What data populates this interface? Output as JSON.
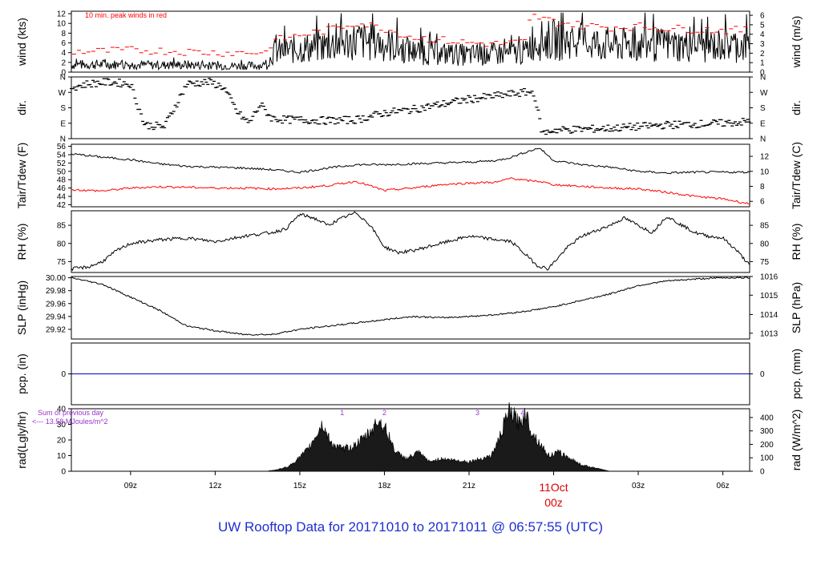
{
  "footer": {
    "title": "UW Rooftop Data for 20171010  to  20171011 @ 06:57:55  (UTC)"
  },
  "time_axis": {
    "tick_labels": [
      {
        "label": "09z",
        "t": 9
      },
      {
        "label": "12z",
        "t": 12
      },
      {
        "label": "15z",
        "t": 15
      },
      {
        "label": "18z",
        "t": 18
      },
      {
        "label": "21z",
        "t": 21
      },
      {
        "label": "03z",
        "t": 27
      },
      {
        "label": "06z",
        "t": 30
      }
    ],
    "date_marker": {
      "t": 24,
      "line1": "11Oct",
      "line2": "00z",
      "color": "#dd0000"
    },
    "range_hours": [
      6.9,
      30.95
    ]
  },
  "colors": {
    "line": "#000000",
    "red": "#ff0000",
    "blue": "#0000cc",
    "purple": "#9933cc"
  },
  "chart_data": [
    {
      "id": "wind",
      "type": "line",
      "ylabel_left": "wind (kts)",
      "ylabel_right": "wind (m/s)",
      "ylim": [
        0,
        12.5
      ],
      "left_ticks": [
        0,
        2,
        4,
        6,
        8,
        10,
        12
      ],
      "right_ticks": [
        {
          "label": "0",
          "value": 0
        },
        {
          "label": "1",
          "value": 1.944
        },
        {
          "label": "2",
          "value": 3.888
        },
        {
          "label": "3",
          "value": 5.832
        },
        {
          "label": "4",
          "value": 7.776
        },
        {
          "label": "5",
          "value": 9.72
        },
        {
          "label": "6",
          "value": 11.664
        }
      ],
      "annotation": {
        "text": "10 min. peak winds in red"
      },
      "series": [
        {
          "name": "",
          "style": "noisy-line",
          "x": [
            6.9,
            8.0,
            9.0,
            10.0,
            11.0,
            12.0,
            13.0,
            13.9,
            14.0,
            15.0,
            16.0,
            17.0,
            18.0,
            19.0,
            20.0,
            21.0,
            22.0,
            23.0,
            23.2,
            24.0,
            25.0,
            26.0,
            27.0,
            28.0,
            29.0,
            30.0,
            30.95
          ],
          "y": [
            1.5,
            1.6,
            1.5,
            1.4,
            1.5,
            1.3,
            1.3,
            1.4,
            4.0,
            4.8,
            5.5,
            6.5,
            5.8,
            4.2,
            3.8,
            3.5,
            3.7,
            4.0,
            6.3,
            6.6,
            6.2,
            5.6,
            5.5,
            5.6,
            5.3,
            5.5,
            5.5
          ]
        },
        {
          "name": "",
          "style": "dashes",
          "x": [
            6.9,
            8.0,
            9.0,
            10.0,
            11.0,
            12.0,
            13.0,
            13.9,
            14.0,
            15.0,
            16.0,
            17.0,
            18.0,
            19.0,
            20.0,
            21.0,
            22.0,
            23.0,
            23.2,
            24.0,
            25.0,
            26.0,
            27.0,
            28.0,
            29.0,
            30.0,
            30.95
          ],
          "y": [
            4.2,
            4.3,
            4.5,
            4.4,
            4.2,
            4.0,
            4.0,
            4.1,
            6.3,
            7.6,
            8.6,
            10.2,
            9.0,
            7.2,
            6.6,
            6.0,
            5.8,
            6.2,
            11.6,
            10.4,
            9.6,
            9.2,
            9.4,
            9.0,
            8.8,
            8.6,
            8.6
          ]
        }
      ]
    },
    {
      "id": "dir",
      "type": "scatter",
      "ylabel_left": "dir.",
      "ylabel_right": "dir.",
      "ylim": [
        0,
        360
      ],
      "ticks": [
        {
          "label": "N",
          "value": 0
        },
        {
          "label": "E",
          "value": 90
        },
        {
          "label": "S",
          "value": 180
        },
        {
          "label": "W",
          "value": 270
        },
        {
          "label": "N",
          "value": 360
        }
      ],
      "series": [
        {
          "name": "",
          "style": "dashes",
          "x": [
            6.9,
            7.5,
            8.2,
            9.0,
            9.5,
            10.2,
            11.0,
            11.8,
            12.3,
            12.8,
            13.2,
            13.6,
            14.0,
            14.5,
            15.0,
            16.0,
            17.0,
            18.0,
            19.0,
            20.0,
            21.0,
            22.0,
            23.0,
            23.3,
            23.6,
            24.0,
            25.0,
            26.0,
            27.0,
            28.0,
            29.0,
            30.0,
            30.95
          ],
          "y": [
            300,
            320,
            330,
            320,
            80,
            70,
            320,
            330,
            300,
            150,
            90,
            200,
            120,
            110,
            110,
            105,
            110,
            150,
            170,
            200,
            230,
            250,
            270,
            270,
            30,
            50,
            55,
            60,
            70,
            80,
            85,
            90,
            100
          ]
        }
      ]
    },
    {
      "id": "temp",
      "type": "line",
      "ylabel_left": "Tair/Tdew (F)",
      "ylabel_right": "Tair/Tdew (C)",
      "ylim": [
        41.5,
        56.5
      ],
      "left_ticks": [
        42,
        44,
        46,
        48,
        50,
        52,
        54,
        56
      ],
      "right_ticks": [
        {
          "label": "6",
          "value": 42.8
        },
        {
          "label": "8",
          "value": 46.4
        },
        {
          "label": "10",
          "value": 50.0
        },
        {
          "label": "12",
          "value": 53.6
        }
      ],
      "series": [
        {
          "name": "",
          "color": "#000000",
          "x": [
            6.9,
            8.0,
            9.0,
            10.0,
            11.0,
            12.0,
            13.0,
            14.0,
            15.0,
            16.0,
            17.0,
            18.0,
            19.0,
            20.0,
            21.0,
            22.0,
            22.5,
            23.0,
            23.5,
            24.0,
            25.0,
            26.0,
            27.0,
            28.0,
            29.0,
            30.0,
            30.95
          ],
          "y": [
            54.2,
            53.4,
            52.8,
            51.8,
            51.2,
            51.0,
            50.8,
            50.4,
            49.8,
            50.8,
            51.6,
            51.6,
            51.8,
            52.0,
            52.2,
            52.6,
            53.4,
            54.6,
            55.6,
            52.6,
            51.6,
            51.0,
            50.0,
            49.6,
            49.8,
            49.8,
            49.8
          ]
        },
        {
          "name": "",
          "color": "#ff0000",
          "x": [
            6.9,
            8.0,
            9.0,
            10.0,
            11.0,
            12.0,
            13.0,
            14.0,
            15.0,
            16.0,
            17.0,
            18.0,
            19.0,
            20.0,
            21.0,
            22.0,
            22.5,
            23.0,
            23.5,
            24.0,
            25.0,
            26.0,
            27.0,
            28.0,
            29.0,
            30.0,
            30.95
          ],
          "y": [
            45.6,
            45.3,
            46.0,
            46.3,
            46.2,
            46.0,
            46.0,
            45.8,
            46.0,
            46.6,
            47.6,
            45.4,
            46.0,
            46.8,
            47.2,
            47.4,
            48.4,
            47.8,
            47.6,
            46.8,
            46.4,
            46.0,
            45.8,
            45.0,
            44.0,
            43.4,
            42.2
          ]
        }
      ]
    },
    {
      "id": "rh",
      "type": "line",
      "ylabel_left": "RH (%)",
      "ylabel_right": "RH (%)",
      "ylim": [
        72,
        89
      ],
      "ticks": [
        75,
        80,
        85
      ],
      "series": [
        {
          "name": "",
          "color": "#000000",
          "x": [
            6.9,
            7.5,
            8.0,
            8.5,
            9.0,
            10.0,
            11.0,
            12.0,
            13.0,
            14.0,
            14.5,
            15.0,
            15.5,
            16.0,
            16.5,
            17.0,
            17.5,
            18.0,
            18.5,
            19.0,
            20.0,
            21.0,
            22.0,
            22.5,
            23.0,
            23.4,
            23.8,
            24.5,
            25.0,
            26.0,
            26.5,
            27.0,
            27.5,
            28.0,
            29.0,
            29.5,
            30.0,
            30.5,
            30.95
          ],
          "y": [
            73.0,
            73.5,
            75.0,
            78.0,
            80.0,
            81.0,
            81.5,
            80.5,
            82.0,
            83.0,
            84.0,
            88.0,
            87.0,
            85.0,
            87.0,
            88.5,
            85.0,
            79.0,
            77.5,
            78.0,
            80.0,
            82.0,
            81.0,
            80.5,
            77.0,
            74.0,
            73.0,
            79.0,
            82.0,
            85.0,
            87.0,
            85.0,
            83.0,
            87.5,
            83.0,
            82.0,
            81.5,
            78.0,
            74.0
          ]
        }
      ]
    },
    {
      "id": "slp",
      "type": "line",
      "ylabel_left": "SLP (inHg)",
      "ylabel_right": "SLP (hPa)",
      "ylim": [
        29.905,
        30.002
      ],
      "left_ticks": [
        {
          "label": "29.92",
          "value": 29.92
        },
        {
          "label": "29.94",
          "value": 29.94
        },
        {
          "label": "29.96",
          "value": 29.96
        },
        {
          "label": "29.98",
          "value": 29.98
        },
        {
          "label": "30.00",
          "value": 30.0
        }
      ],
      "right_ticks": [
        {
          "label": "1013",
          "value": 29.914
        },
        {
          "label": "1014",
          "value": 29.943
        },
        {
          "label": "1015",
          "value": 29.973
        },
        {
          "label": "1016",
          "value": 30.002
        }
      ],
      "series": [
        {
          "name": "",
          "color": "#000000",
          "x": [
            6.9,
            8.0,
            9.0,
            10.0,
            11.0,
            12.0,
            13.0,
            14.0,
            15.0,
            16.0,
            17.0,
            18.0,
            19.0,
            20.0,
            21.0,
            22.0,
            23.0,
            24.0,
            25.0,
            26.0,
            27.0,
            28.0,
            29.0,
            30.0,
            30.95
          ],
          "y": [
            30.0,
            29.99,
            29.97,
            29.95,
            29.925,
            29.918,
            29.912,
            29.912,
            29.92,
            29.925,
            29.93,
            29.935,
            29.94,
            29.938,
            29.94,
            29.943,
            29.948,
            29.955,
            29.965,
            29.975,
            29.988,
            29.995,
            29.998,
            30.0,
            30.0
          ]
        }
      ]
    },
    {
      "id": "pcp",
      "type": "line",
      "ylabel_left": "pcp. (in)",
      "ylabel_right": "pcp. (mm)",
      "ylim": [
        -1,
        1
      ],
      "left_ticks": [
        {
          "label": "0",
          "value": 0
        }
      ],
      "right_ticks": [
        {
          "label": "0",
          "value": 0
        }
      ],
      "series": [
        {
          "name": "",
          "color": "#0000cc",
          "x": [
            6.9,
            30.95
          ],
          "y": [
            0,
            0
          ]
        }
      ]
    },
    {
      "id": "rad",
      "type": "area",
      "ylabel_left": "rad(Lgly/hr)",
      "ylabel_right": "rad (W/m^2)",
      "ylim": [
        0,
        40
      ],
      "left_ticks": [
        0,
        10,
        20,
        30,
        40
      ],
      "right_ticks": [
        {
          "label": "0",
          "value": 0
        },
        {
          "label": "100",
          "value": 8.6
        },
        {
          "label": "200",
          "value": 17.2
        },
        {
          "label": "300",
          "value": 25.8
        },
        {
          "label": "400",
          "value": 34.4
        }
      ],
      "sum_note": {
        "line1": "Sum of previous day",
        "line2": "<--- 13.58 MJoules/m^2"
      },
      "markers": [
        {
          "label": "1",
          "t": 16.5
        },
        {
          "label": "2",
          "t": 18.0
        },
        {
          "label": "3",
          "t": 21.3
        },
        {
          "label": "4",
          "t": 22.9
        }
      ],
      "series": [
        {
          "name": "",
          "color": "#000000",
          "x": [
            6.9,
            13.8,
            14.2,
            14.6,
            15.0,
            15.3,
            15.6,
            15.8,
            16.1,
            16.5,
            16.9,
            17.2,
            17.5,
            17.8,
            18.1,
            18.4,
            18.8,
            19.2,
            19.6,
            20.0,
            20.5,
            21.0,
            21.4,
            21.8,
            22.1,
            22.4,
            22.6,
            22.8,
            23.0,
            23.2,
            23.5,
            23.8,
            24.2,
            24.6,
            25.0,
            25.5,
            26.0,
            30.95
          ],
          "y": [
            0,
            0,
            1,
            3,
            9,
            14,
            24,
            30,
            18,
            14,
            16,
            20,
            25,
            33,
            25,
            12,
            8,
            12,
            6,
            8,
            7,
            6,
            8,
            10,
            22,
            38,
            35,
            30,
            38,
            26,
            18,
            10,
            12,
            8,
            4,
            2,
            0,
            0
          ]
        }
      ]
    }
  ]
}
